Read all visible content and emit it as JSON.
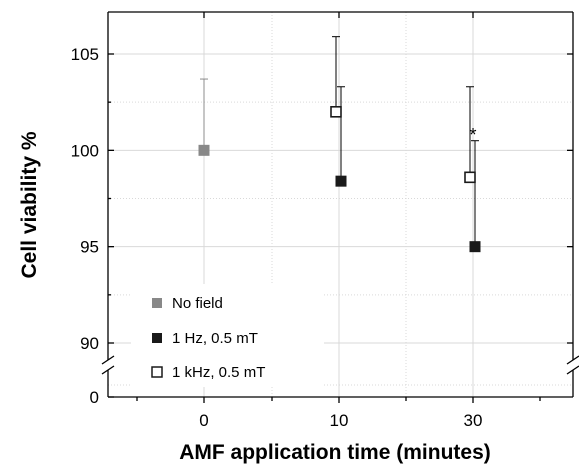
{
  "chart_data": {
    "type": "scatter",
    "xlabel": "AMF application time (minutes)",
    "ylabel": "Cell viability %",
    "categories": [
      "0",
      "10",
      "30"
    ],
    "y_ticks": [
      "105",
      "100",
      "95",
      "90"
    ],
    "y_zero_tick": "0",
    "axis_break": true,
    "ylim": [
      89,
      107
    ],
    "grid": true,
    "legend_position": "bottom-left",
    "series": [
      {
        "name": "No field",
        "marker": "filled-square",
        "color": "#888888",
        "points": [
          {
            "category": "0",
            "y": 100.0,
            "err": 3.7
          }
        ]
      },
      {
        "name": "1 Hz, 0.5 mT",
        "marker": "filled-square",
        "color": "#1a1a1a",
        "points": [
          {
            "category": "10",
            "y": 98.4,
            "err": 4.9
          },
          {
            "category": "30",
            "y": 95.0,
            "err": 5.5
          }
        ]
      },
      {
        "name": "1 kHz, 0.5 mT",
        "marker": "open-square",
        "color": "#1a1a1a",
        "points": [
          {
            "category": "10",
            "y": 102.0,
            "err": 3.9
          },
          {
            "category": "30",
            "y": 98.6,
            "err": 4.7
          }
        ]
      }
    ],
    "annotations": [
      {
        "text": "*",
        "category": "30",
        "y": 100.9
      }
    ]
  }
}
